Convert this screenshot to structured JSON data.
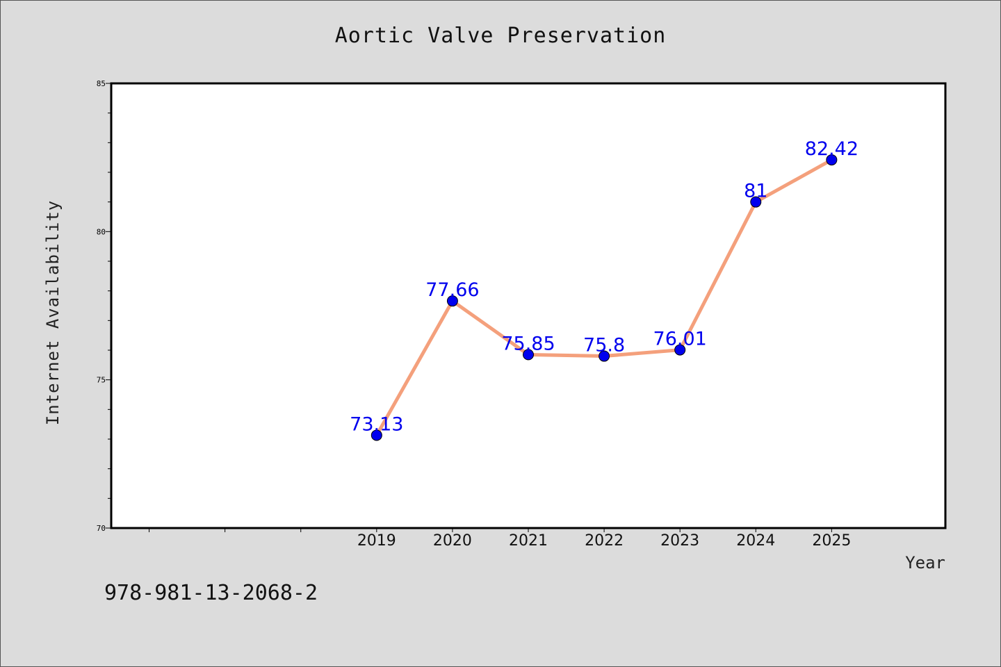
{
  "chart_data": {
    "type": "line",
    "title": "Aortic Valve Preservation",
    "xlabel": "Year",
    "ylabel": "Internet Availability",
    "x": [
      2019,
      2020,
      2021,
      2022,
      2023,
      2024,
      2025
    ],
    "series": [
      {
        "values": [
          73.13,
          77.66,
          75.85,
          75.8,
          76.01,
          81,
          82.42
        ]
      }
    ],
    "data_labels": [
      "73.13",
      "77.66",
      "75.85",
      "75.8",
      "76.01",
      "81",
      "82.42"
    ],
    "ylim": [
      70,
      85
    ],
    "yticks": [
      70,
      75,
      80,
      85
    ],
    "xlim": [
      2015.5,
      2026.5
    ],
    "grid": false,
    "colors": {
      "line": "#f4a07c",
      "marker": "#0000ee",
      "label": "#0000ee"
    }
  },
  "footer": {
    "code": "978-981-13-2068-2"
  }
}
